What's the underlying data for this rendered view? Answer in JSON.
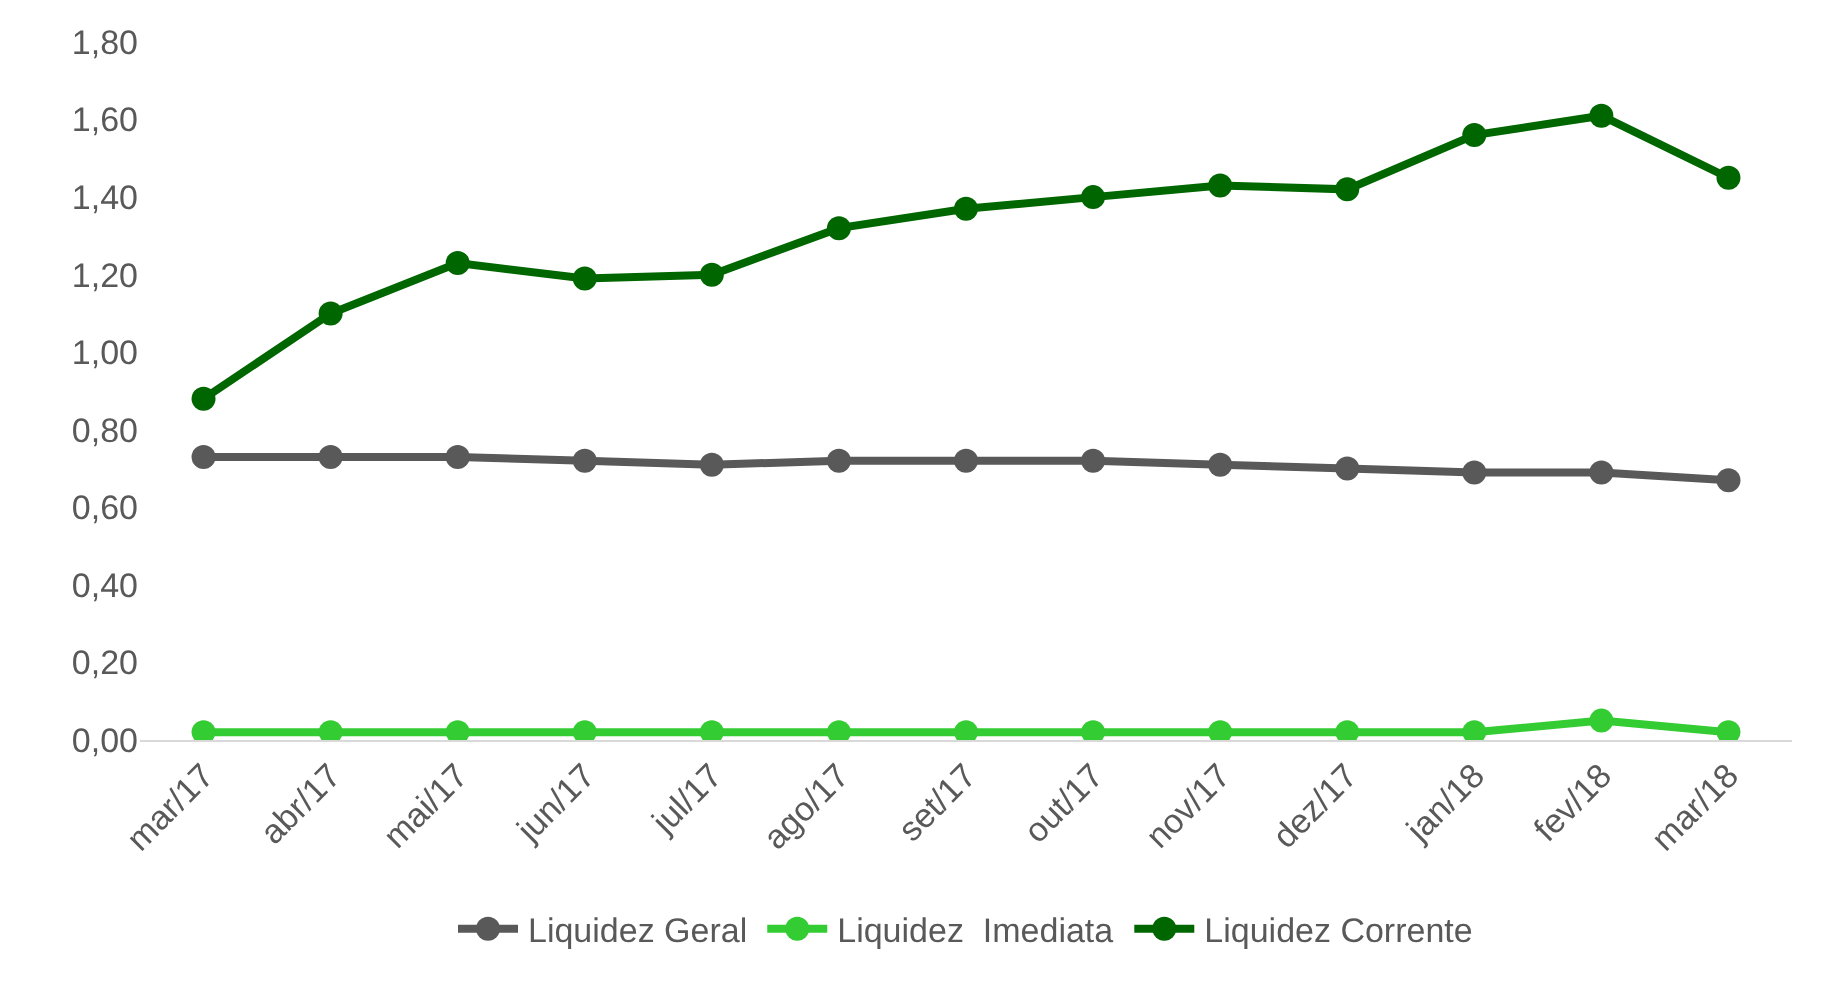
{
  "chart_data": {
    "type": "line",
    "categories": [
      "mar/17",
      "abr/17",
      "mai/17",
      "jun/17",
      "jul/17",
      "ago/17",
      "set/17",
      "out/17",
      "nov/17",
      "dez/17",
      "jan/18",
      "fev/18",
      "mar/18"
    ],
    "series": [
      {
        "name": "Liquidez Geral",
        "color": "#595959",
        "values": [
          0.73,
          0.73,
          0.73,
          0.72,
          0.71,
          0.72,
          0.72,
          0.72,
          0.71,
          0.7,
          0.69,
          0.69,
          0.67
        ]
      },
      {
        "name": "Liquidez  Imediata",
        "color": "#33cc33",
        "values": [
          0.02,
          0.02,
          0.02,
          0.02,
          0.02,
          0.02,
          0.02,
          0.02,
          0.02,
          0.02,
          0.02,
          0.05,
          0.02
        ]
      },
      {
        "name": "Liquidez Corrente",
        "color": "#006600",
        "values": [
          0.88,
          1.1,
          1.23,
          1.19,
          1.2,
          1.32,
          1.37,
          1.4,
          1.43,
          1.42,
          1.56,
          1.61,
          1.45
        ]
      }
    ],
    "ylim": [
      0,
      1.8
    ],
    "yticks": [
      {
        "value": 0,
        "label": "0,00"
      },
      {
        "value": 0.2,
        "label": "0,20"
      },
      {
        "value": 0.4,
        "label": "0,40"
      },
      {
        "value": 0.6,
        "label": "0,60"
      },
      {
        "value": 0.8,
        "label": "0,80"
      },
      {
        "value": 1.0,
        "label": "1,00"
      },
      {
        "value": 1.2,
        "label": "1,20"
      },
      {
        "value": 1.4,
        "label": "1,40"
      },
      {
        "value": 1.6,
        "label": "1,60"
      },
      {
        "value": 1.8,
        "label": "1,80"
      }
    ],
    "legend": "bottom",
    "marker": "circle",
    "line_style": "solid"
  }
}
